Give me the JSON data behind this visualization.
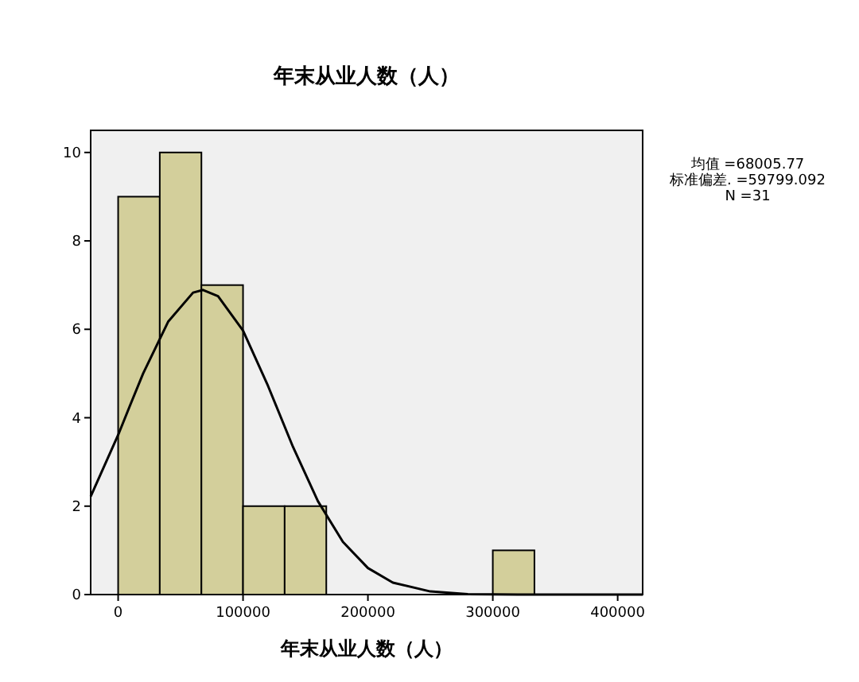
{
  "chart_data": {
    "type": "histogram",
    "title": "年末从业人数（人）",
    "xlabel": "年末从业人数（人）",
    "bins": [
      0,
      33333,
      66667,
      100000,
      133333,
      166667,
      200000,
      233333,
      266667,
      300000,
      333333
    ],
    "values": [
      9,
      10,
      7,
      2,
      2,
      0,
      0,
      0,
      0,
      1
    ],
    "color": "#d3cf9b",
    "series": [
      {
        "type": "line",
        "color": "#000000",
        "x": [
          -22000,
          0,
          10000,
          20000,
          40000,
          60000,
          68000,
          80000,
          100000,
          120000,
          140000,
          160000,
          180000,
          200000,
          220000,
          250000,
          280000,
          320000,
          420000
        ],
        "values": [
          2.22,
          3.61,
          4.31,
          5.0,
          6.17,
          6.83,
          6.89,
          6.75,
          5.97,
          4.72,
          3.34,
          2.11,
          1.19,
          0.6,
          0.27,
          0.07,
          0.01,
          0,
          0
        ]
      }
    ],
    "xlim": [
      -22000,
      420000
    ],
    "ylim": [
      0,
      10.5
    ],
    "xticks": [
      0,
      100000,
      200000,
      300000,
      400000
    ],
    "yticks": [
      0,
      2,
      4,
      6,
      8,
      10
    ],
    "grid": false,
    "annotations": [
      "均值 =68005.77",
      "标准偏差. =59799.092",
      "N =31"
    ]
  }
}
